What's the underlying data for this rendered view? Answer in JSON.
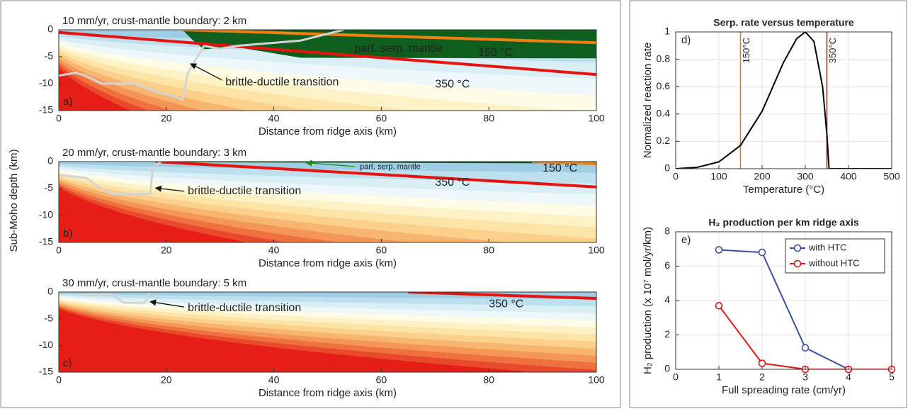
{
  "chart_data": [
    {
      "type": "line",
      "title": "10 mm/yr, crust-mantle boundary: 2 km",
      "panel_label": "a)",
      "xlabel": "Distance from ridge axis (km)",
      "xlim": [
        0,
        100
      ],
      "ylim": [
        -15,
        0
      ],
      "xticks": [
        0,
        20,
        40,
        60,
        80,
        100
      ],
      "yticks": [
        0,
        -5,
        -10,
        -15
      ],
      "grid": false,
      "series": [
        {
          "color": "#e8130f",
          "x": [
            0,
            100
          ],
          "values": [
            -0.5,
            -8.3
          ]
        },
        {
          "color": "#f08010",
          "x": [
            23,
            100
          ],
          "values": [
            0,
            -2.4
          ]
        },
        {
          "color": "#d4d4d4",
          "x": [
            0,
            3,
            5,
            8,
            14,
            18,
            22,
            23,
            24,
            27,
            30,
            33,
            45,
            53
          ],
          "values": [
            -8.5,
            -8,
            -8.5,
            -10,
            -10,
            -11.5,
            -12.5,
            -13,
            -8,
            -3,
            -3.5,
            -3,
            -2,
            0
          ]
        }
      ],
      "annotations": [
        "part. serp. mantle",
        "150 °C",
        "350 °C",
        "brittle-ductile transition"
      ]
    },
    {
      "type": "line",
      "title": "20 mm/yr, crust-mantle boundary: 3 km",
      "panel_label": "b)",
      "xlabel": "Distance from ridge axis (km)",
      "ylabel": "Sub-Moho depth (km)",
      "xlim": [
        0,
        100
      ],
      "ylim": [
        -15,
        0
      ],
      "xticks": [
        0,
        20,
        40,
        60,
        80,
        100
      ],
      "yticks": [
        0,
        -5,
        -10,
        -15
      ],
      "grid": false,
      "series": [
        {
          "color": "#e8130f",
          "x": [
            18,
            100
          ],
          "values": [
            0,
            -4.7
          ]
        },
        {
          "color": "#f08010",
          "x": [
            88,
            100
          ],
          "values": [
            0,
            -0.4
          ]
        },
        {
          "color": "#d4d4d4",
          "x": [
            0,
            5,
            8,
            10,
            17,
            17.5,
            19
          ],
          "values": [
            -2.5,
            -3,
            -5,
            -6,
            -6,
            -1,
            0
          ]
        }
      ],
      "annotations": [
        "part. serp. mantle",
        "150 °C",
        "350 °C",
        "brittle-ductile transition"
      ]
    },
    {
      "type": "line",
      "title": "30 mm/yr, crust-mantle boundary: 5 km",
      "panel_label": "c)",
      "xlabel": "Distance from ridge axis (km)",
      "xlim": [
        0,
        100
      ],
      "ylim": [
        -15,
        0
      ],
      "xticks": [
        0,
        20,
        40,
        60,
        80,
        100
      ],
      "yticks": [
        0,
        -5,
        -10,
        -15
      ],
      "grid": false,
      "series": [
        {
          "color": "#e8130f",
          "x": [
            65,
            100
          ],
          "values": [
            0,
            -1.2
          ]
        },
        {
          "color": "#d4d4d4",
          "x": [
            4,
            10,
            12,
            16,
            17
          ],
          "values": [
            -0.5,
            -0.5,
            -2,
            -2,
            0
          ]
        }
      ],
      "annotations": [
        "350 °C",
        "brittle-ductile transition"
      ]
    },
    {
      "type": "line",
      "title": "Serp. rate versus temperature",
      "panel_label": "d)",
      "xlabel": "Temperature (°C)",
      "ylabel": "Normalized reaction rate",
      "xlim": [
        0,
        500
      ],
      "ylim": [
        0,
        1
      ],
      "xticks": [
        0,
        100,
        200,
        300,
        400,
        500
      ],
      "yticks": [
        0,
        0.2,
        0.4,
        0.6,
        0.8,
        1
      ],
      "grid": true,
      "series": [
        {
          "color": "#000000",
          "x": [
            0,
            50,
            100,
            150,
            200,
            250,
            280,
            300,
            320,
            340,
            350,
            355,
            400,
            500
          ],
          "values": [
            0,
            0.01,
            0.05,
            0.17,
            0.42,
            0.78,
            0.95,
            1,
            0.93,
            0.6,
            0.25,
            0,
            0,
            0
          ]
        }
      ],
      "vlines": [
        {
          "value": 150,
          "label": "150°C",
          "color": "#e67e00"
        },
        {
          "value": 350,
          "label": "350°C",
          "color": "#d01010"
        }
      ]
    },
    {
      "type": "line",
      "title": "H₂ production per km ridge axis",
      "panel_label": "e)",
      "xlabel": "Full spreading rate (cm/yr)",
      "ylabel": "H₂ production (x 10⁷ mol/yr/km)",
      "xlim": [
        0,
        5
      ],
      "ylim": [
        0,
        8
      ],
      "xticks": [
        0,
        1,
        2,
        3,
        4,
        5
      ],
      "yticks": [
        0,
        2,
        4,
        6,
        8
      ],
      "grid": true,
      "marker": "o",
      "legend": "upper right",
      "series": [
        {
          "name": "with HTC",
          "color": "#3a4fa8",
          "x": [
            1,
            2,
            3,
            4
          ],
          "values": [
            6.95,
            6.8,
            1.25,
            0
          ]
        },
        {
          "name": "without HTC",
          "color": "#e8130f",
          "x": [
            1,
            2,
            3,
            4,
            5
          ],
          "values": [
            3.7,
            0.35,
            0,
            0,
            0
          ]
        }
      ]
    }
  ]
}
